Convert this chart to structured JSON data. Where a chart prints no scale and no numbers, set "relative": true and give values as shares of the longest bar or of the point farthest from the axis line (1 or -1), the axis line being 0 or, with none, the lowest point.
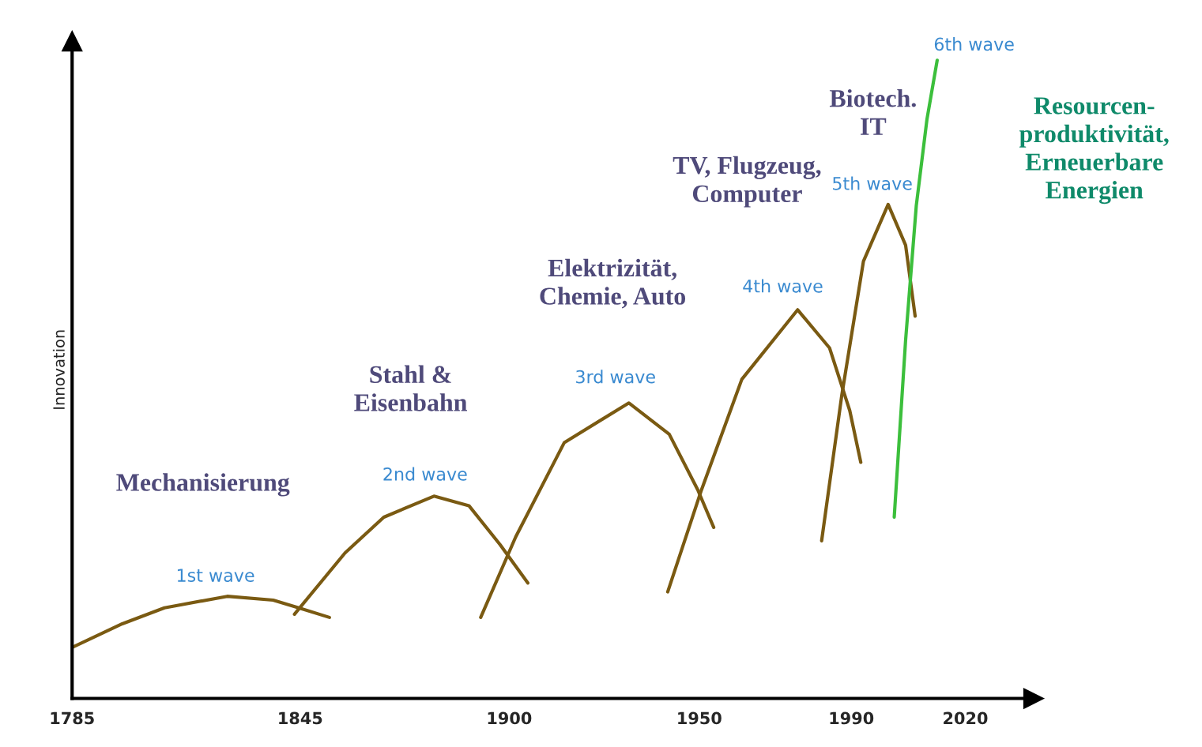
{
  "chart_data": {
    "type": "line",
    "relative": true,
    "ylabel": "Innovation",
    "xlim": [
      1785,
      2038
    ],
    "xticks": [
      1785,
      1845,
      1900,
      1950,
      1990,
      2020
    ],
    "grid": false,
    "legend": false,
    "marker": "none",
    "line_style": "solid",
    "series": [
      {
        "color": "#7a5a12",
        "x": [
          1785,
          1798.2,
          1809.3,
          1825.8,
          1837.9,
          1844.6,
          1852.7
        ],
        "values": [
          0.08,
          0.117,
          0.142,
          0.16,
          0.154,
          0.142,
          0.127
        ]
      },
      {
        "color": "#7a5a12",
        "x": [
          1843.5,
          1856.8,
          1867.0,
          1880.2,
          1889.4,
          1897.6,
          1904.9
        ],
        "values": [
          0.132,
          0.228,
          0.284,
          0.317,
          0.302,
          0.241,
          0.181
        ]
      },
      {
        "color": "#7a5a12",
        "x": [
          1892.5,
          1901.7,
          1914.5,
          1931.5,
          1942.1,
          1949.6,
          1953.8
        ],
        "values": [
          0.127,
          0.253,
          0.401,
          0.463,
          0.414,
          0.327,
          0.268
        ]
      },
      {
        "color": "#7a5a12",
        "x": [
          1941.7,
          1950.6,
          1961.2,
          1975.9,
          1984.3,
          1989.6,
          1992.5
        ],
        "values": [
          0.167,
          0.327,
          0.5,
          0.609,
          0.549,
          0.451,
          0.37
        ]
      },
      {
        "color": "#7a5a12",
        "x": [
          1982.2,
          1987.5,
          1993.2,
          1999.7,
          2004.3,
          2006.8
        ],
        "values": [
          0.247,
          0.475,
          0.685,
          0.774,
          0.71,
          0.599
        ]
      },
      {
        "color": "#3cbf3c",
        "x": [
          2001.3,
          2004.3,
          2007.1,
          2009.9,
          2012.6
        ],
        "values": [
          0.284,
          0.562,
          0.772,
          0.907,
          1.0
        ]
      }
    ],
    "annotations": [
      "1st wave",
      "2nd wave",
      "3rd wave",
      "4th wave",
      "5th wave",
      "6th wave",
      "Mechanisierung",
      "Stahl &\nEisenbahn",
      "Elektrizität,\nChemie, Auto",
      "TV, Flugzeug,\nComputer",
      "Biotech.\nIT",
      "Resourcen-\nproduktivität,\nErneuerbare\nEnergien"
    ]
  }
}
